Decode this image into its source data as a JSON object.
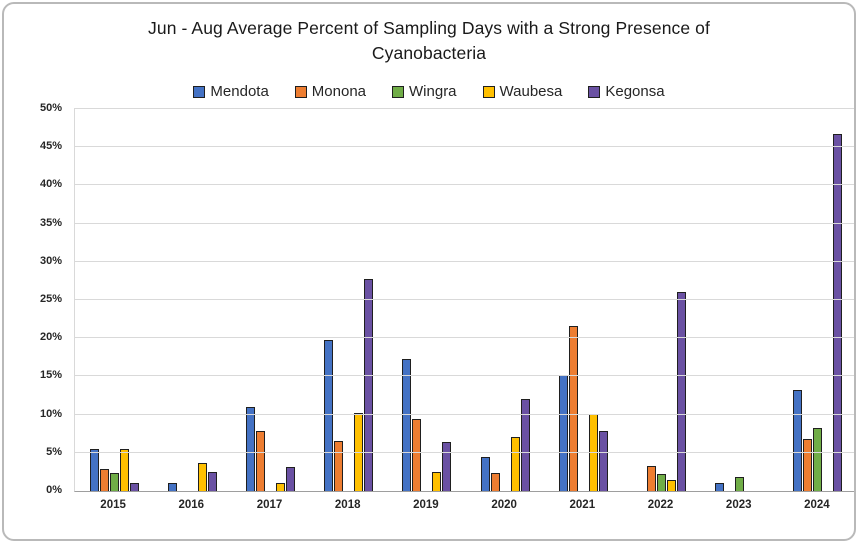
{
  "frame": {
    "background": "#ffffff",
    "border_color": "#b9b9b9"
  },
  "chart_data": {
    "type": "bar",
    "title": "Jun - Aug Average Percent of Sampling Days with a Strong Presence of Cyanobacteria",
    "categories": [
      "2015",
      "2016",
      "2017",
      "2018",
      "2019",
      "2020",
      "2021",
      "2022",
      "2023",
      "2024"
    ],
    "series": [
      {
        "name": "Mendota",
        "color": "#4472C4",
        "values": [
          5.5,
          1.1,
          11.0,
          19.8,
          17.3,
          4.4,
          15.2,
          0,
          1.1,
          13.2
        ]
      },
      {
        "name": "Monona",
        "color": "#ED7D31",
        "values": [
          2.9,
          0,
          7.9,
          6.5,
          9.4,
          2.4,
          21.6,
          3.3,
          0,
          6.8
        ]
      },
      {
        "name": "Wingra",
        "color": "#70AD47",
        "values": [
          2.3,
          0,
          0,
          0,
          0,
          0,
          0,
          2.2,
          1.8,
          8.2
        ]
      },
      {
        "name": "Waubesa",
        "color": "#FFC000",
        "values": [
          5.5,
          3.6,
          1.1,
          10.2,
          2.5,
          7.1,
          10.1,
          1.5,
          0,
          0
        ]
      },
      {
        "name": "Kegonsa",
        "color": "#6A51A3",
        "values": [
          1.1,
          2.5,
          3.2,
          27.8,
          6.4,
          12.0,
          7.9,
          26.1,
          0,
          46.7
        ]
      }
    ],
    "xlabel": "",
    "ylabel": "",
    "ylim": [
      0,
      50
    ],
    "ytick_step": 5,
    "ytick_suffix": "%",
    "grid": true,
    "legend_position": "top",
    "bar_outline_color": "#1f1f1f",
    "gridline_color": "#d9d9d9",
    "axis_line_color": "#9e9e9e"
  }
}
